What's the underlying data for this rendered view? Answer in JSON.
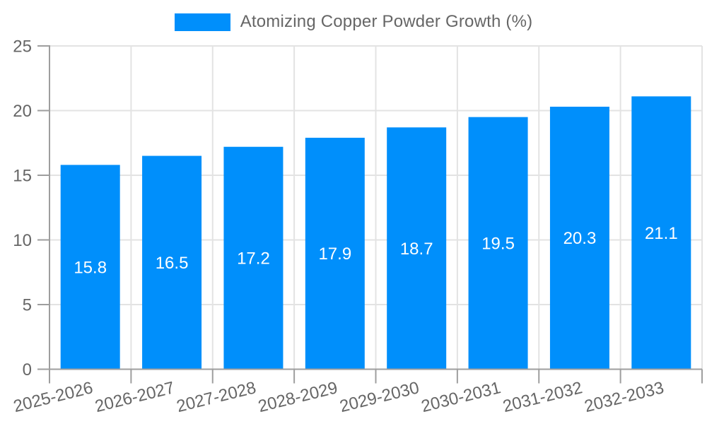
{
  "chart_data": {
    "type": "bar",
    "legend": "Atomizing Copper Powder Growth (%)",
    "legend_position": "top-center",
    "categories": [
      "2025-2026",
      "2026-2027",
      "2027-2028",
      "2028-2029",
      "2029-2030",
      "2030-2031",
      "2031-2032",
      "2032-2033"
    ],
    "values": [
      15.8,
      16.5,
      17.2,
      17.9,
      18.7,
      19.5,
      20.3,
      21.1
    ],
    "value_labels": [
      "15.8",
      "16.5",
      "17.2",
      "17.9",
      "18.7",
      "19.5",
      "20.3",
      "21.1"
    ],
    "xlabel": "",
    "ylabel": "",
    "ylim": [
      0,
      25
    ],
    "yticks": [
      0,
      5,
      10,
      15,
      20,
      25
    ],
    "grid": true,
    "x_label_angle": -14,
    "bar_color": "#008FFB",
    "bar_label_color": "#ffffff",
    "axis_text_color": "#666666",
    "axis_line_color": "#9e9e9e",
    "grid_color": "#e3e3e3"
  }
}
